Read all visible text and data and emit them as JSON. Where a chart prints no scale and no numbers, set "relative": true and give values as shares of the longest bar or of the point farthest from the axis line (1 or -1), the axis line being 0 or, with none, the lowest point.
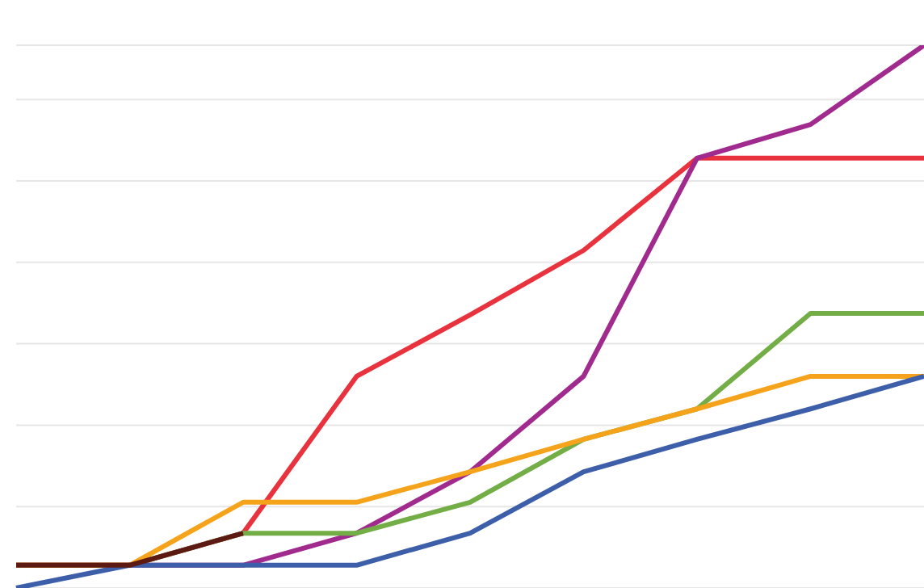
{
  "chart_data": {
    "type": "line",
    "relative": true,
    "grid": "y",
    "marker": "none",
    "line_style": "solid",
    "categories": [
      null,
      null,
      null,
      null,
      null,
      null,
      null,
      null,
      null
    ],
    "series": [
      {
        "color": "#e8333e",
        "values": [
          0.042,
          0.042,
          0.101,
          0.39,
          0.503,
          0.622,
          0.792,
          0.792,
          0.792
        ]
      },
      {
        "color": "#a02a8e",
        "values": [
          0.042,
          0.042,
          0.042,
          0.101,
          0.214,
          0.39,
          0.792,
          0.854,
          1
        ]
      },
      {
        "color": "#72ad45",
        "values": [
          0.042,
          0.042,
          0.101,
          0.101,
          0.158,
          0.274,
          0.33,
          0.506,
          0.506
        ]
      },
      {
        "color": "#f5a31a",
        "values": [
          0.042,
          0.042,
          0.158,
          0.158,
          0.214,
          0.274,
          0.33,
          0.39,
          0.39
        ]
      },
      {
        "color": "#3d5ea8",
        "values": [
          0,
          0.042,
          0.042,
          0.042,
          0.101,
          0.214,
          0.274,
          0.33,
          0.39
        ]
      },
      {
        "color": "#5c1a12",
        "values": [
          0.042,
          0.042,
          0.101,
          null,
          null,
          null,
          null,
          null,
          null
        ]
      }
    ]
  }
}
